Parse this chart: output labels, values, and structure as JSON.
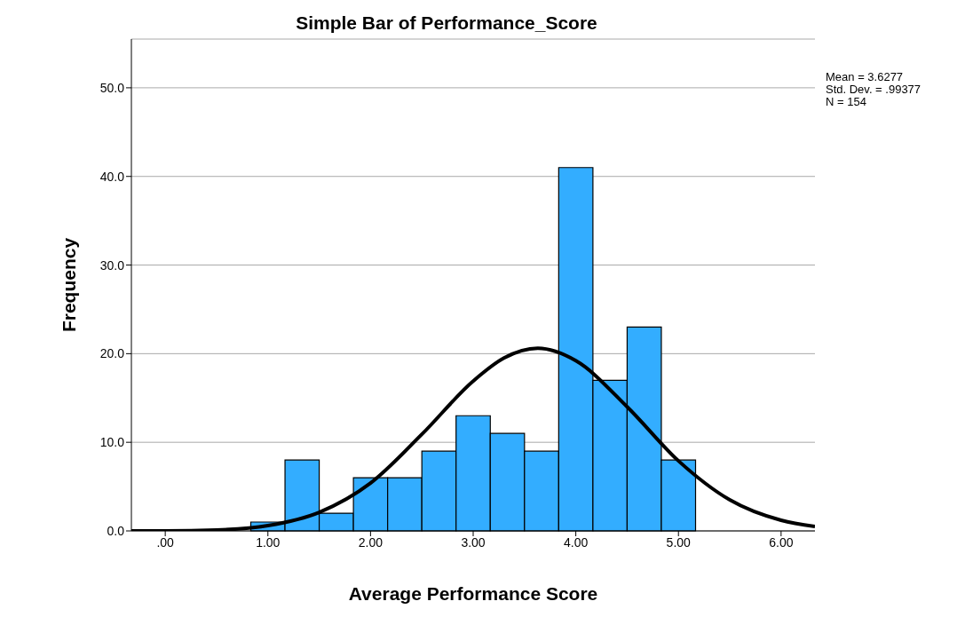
{
  "chart_data": {
    "type": "histogram",
    "title": "Simple Bar of Performance_Score",
    "xlabel": "Average Performance Score",
    "ylabel": "Frequency",
    "bins": [
      0.8333,
      1.1667,
      1.5,
      1.8333,
      2.1667,
      2.5,
      2.8333,
      3.1667,
      3.5,
      3.8333,
      4.1667,
      4.5,
      4.8333,
      5.1667
    ],
    "values": [
      1,
      8,
      2,
      6,
      6,
      9,
      13,
      11,
      9,
      41,
      17,
      23,
      8
    ],
    "color": "#33adff",
    "series": [
      {
        "type": "line",
        "color": "#000000",
        "x": [
          -0.33,
          0,
          0.5,
          1,
          1.5,
          2,
          2.5,
          3,
          3.3,
          3.63,
          4,
          4.5,
          5,
          5.5,
          6,
          6.33
        ],
        "values": [
          0,
          0,
          0.1,
          0.6,
          2.1,
          5.4,
          10.9,
          16.9,
          19.5,
          20.6,
          19.2,
          14,
          7.9,
          3.5,
          1.2,
          0.5
        ]
      }
    ],
    "xlim": [
      -0.33,
      6.33
    ],
    "xticks": [
      {
        "value": 0,
        "label": ".00"
      },
      {
        "value": 1,
        "label": "1.00"
      },
      {
        "value": 2,
        "label": "2.00"
      },
      {
        "value": 3,
        "label": "3.00"
      },
      {
        "value": 4,
        "label": "4.00"
      },
      {
        "value": 5,
        "label": "5.00"
      },
      {
        "value": 6,
        "label": "6.00"
      }
    ],
    "ylim": [
      0,
      55.5
    ],
    "yticks": [
      {
        "value": 0,
        "label": "0.0"
      },
      {
        "value": 10,
        "label": "10.0"
      },
      {
        "value": 20,
        "label": "20.0"
      },
      {
        "value": 30,
        "label": "30.0"
      },
      {
        "value": 40,
        "label": "40.0"
      },
      {
        "value": 50,
        "label": "50.0"
      }
    ],
    "grid": "y",
    "legend": false,
    "marker": "none",
    "annotations": [
      "Mean = 3.6277",
      "Std. Dev. = .99377",
      "N = 154"
    ]
  }
}
